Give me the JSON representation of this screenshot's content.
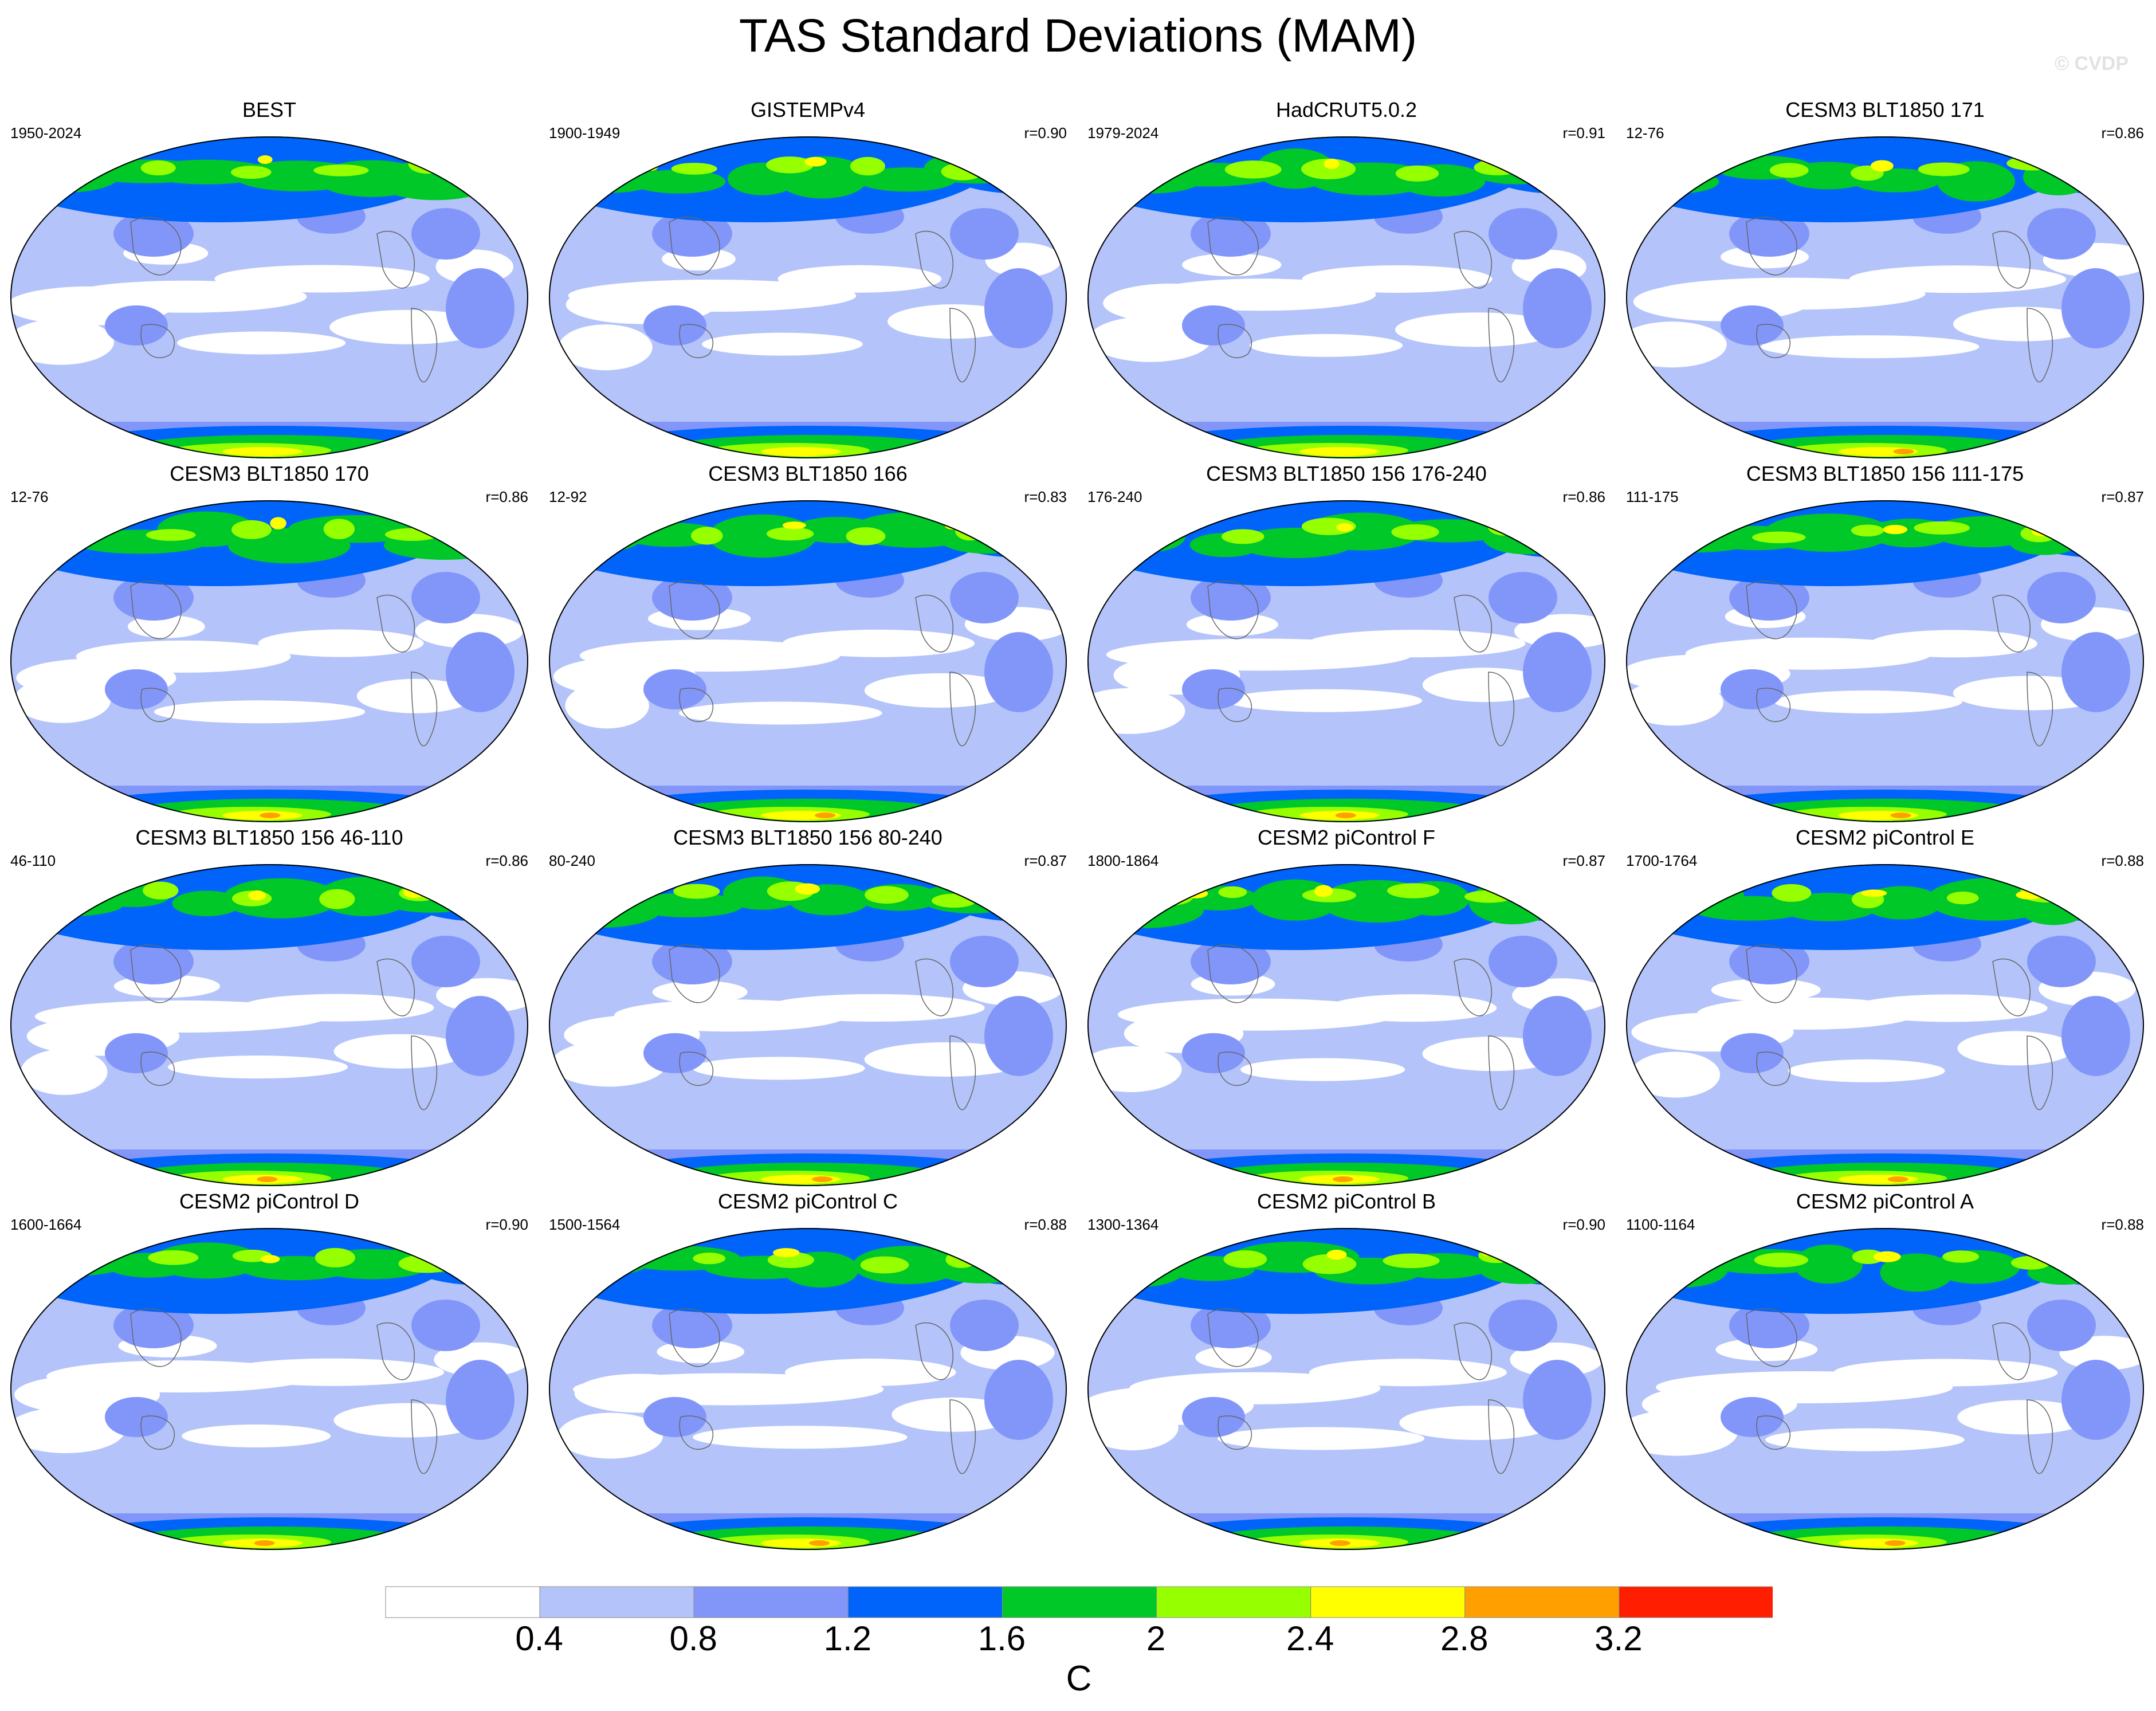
{
  "title": "TAS Standard Deviations (MAM)",
  "copyright": "© CVDP",
  "colors": {
    "levels": [
      "#ffffff",
      "#b4c4fa",
      "#8296fa",
      "#0064fa",
      "#00c828",
      "#96ff00",
      "#ffff00",
      "#ffa000",
      "#ff1e00"
    ],
    "outline": "#666666"
  },
  "panels": [
    {
      "title": "BEST",
      "period": "1950-2024",
      "corr": ""
    },
    {
      "title": "GISTEMPv4",
      "period": "1900-1949",
      "corr": "r=0.90"
    },
    {
      "title": "HadCRUT5.0.2",
      "period": "1979-2024",
      "corr": "r=0.91"
    },
    {
      "title": "CESM3 BLT1850 171",
      "period": "12-76",
      "corr": "r=0.86"
    },
    {
      "title": "CESM3 BLT1850 170",
      "period": "12-76",
      "corr": "r=0.86"
    },
    {
      "title": "CESM3 BLT1850 166",
      "period": "12-92",
      "corr": "r=0.83"
    },
    {
      "title": "CESM3 BLT1850 156 176-240",
      "period": "176-240",
      "corr": "r=0.86"
    },
    {
      "title": "CESM3 BLT1850 156 111-175",
      "period": "111-175",
      "corr": "r=0.87"
    },
    {
      "title": "CESM3 BLT1850 156 46-110",
      "period": "46-110",
      "corr": "r=0.86"
    },
    {
      "title": "CESM3 BLT1850 156 80-240",
      "period": "80-240",
      "corr": "r=0.87"
    },
    {
      "title": "CESM2 piControl F",
      "period": "1800-1864",
      "corr": "r=0.87"
    },
    {
      "title": "CESM2 piControl E",
      "period": "1700-1764",
      "corr": "r=0.88"
    },
    {
      "title": "CESM2 piControl D",
      "period": "1600-1664",
      "corr": "r=0.90"
    },
    {
      "title": "CESM2 piControl C",
      "period": "1500-1564",
      "corr": "r=0.88"
    },
    {
      "title": "CESM2 piControl B",
      "period": "1300-1364",
      "corr": "r=0.90"
    },
    {
      "title": "CESM2 piControl A",
      "period": "1100-1164",
      "corr": "r=0.88"
    }
  ],
  "colorbar": {
    "labels": [
      "0.4",
      "0.8",
      "1.2",
      "1.6",
      "2",
      "2.4",
      "2.8",
      "3.2"
    ],
    "unit": "C"
  }
}
